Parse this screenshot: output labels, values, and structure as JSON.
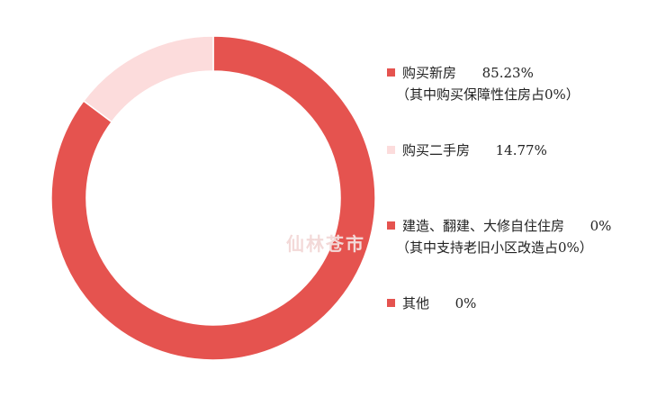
{
  "chart_data": {
    "type": "pie",
    "donut": true,
    "legend_position": "right",
    "slices": [
      {
        "label": "购买新房",
        "value": 85.23,
        "value_label": "85.23%",
        "note": "（其中购买保障性住房占0%）",
        "color": "#e5534f"
      },
      {
        "label": "购买二手房",
        "value": 14.77,
        "value_label": "14.77%",
        "color": "#fcdcdc"
      },
      {
        "label": "建造、翻建、大修自住住房",
        "value": 0,
        "value_label": "0%",
        "note": "（其中支持老旧小区改造占0%）",
        "color": "#e5534f"
      },
      {
        "label": "其他",
        "value": 0,
        "value_label": "0%",
        "color": "#e5534f"
      }
    ]
  },
  "watermark": "仙林苍市"
}
